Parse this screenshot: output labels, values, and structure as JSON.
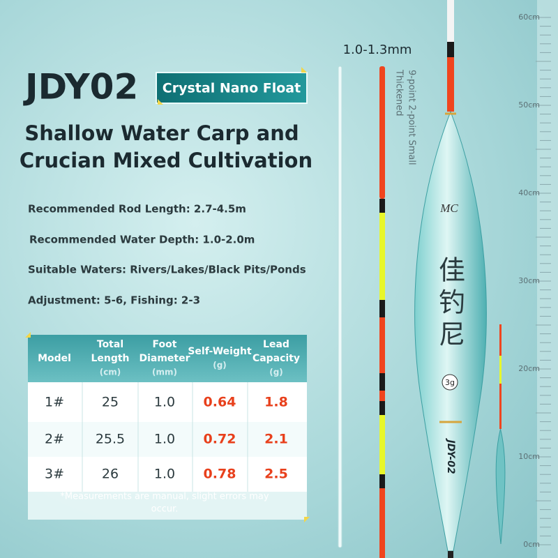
{
  "header": {
    "model": "JDY02",
    "badge": "Crystal Nano Float",
    "headline": [
      "Shallow Water Carp and",
      "Crucian Mixed Cultivation"
    ]
  },
  "specs": [
    "Recommended Rod Length: 2.7-4.5m",
    "Recommended Water Depth: 1.0-2.0m",
    "Suitable Waters: Rivers/Lakes/Black Pits/Ponds",
    "Adjustment: 5-6, Fishing: 2-3"
  ],
  "table": {
    "columns": [
      [
        "Model"
      ],
      [
        "Total",
        "Length",
        "(cm)"
      ],
      [
        "Foot",
        "Diameter",
        "(mm)"
      ],
      [
        "Self-Weight",
        "(g)"
      ],
      [
        "Lead",
        "Capacity",
        "(g)"
      ]
    ],
    "rows": [
      [
        "1#",
        "25",
        "1.0",
        "0.64",
        "1.8"
      ],
      [
        "2#",
        "25.5",
        "1.0",
        "0.72",
        "2.1"
      ],
      [
        "3#",
        "26",
        "1.0",
        "0.78",
        "2.5"
      ]
    ],
    "note": [
      "*Measurements are manual, slight errors may",
      "occur."
    ]
  },
  "product": {
    "stem_size": "1.0-1.3mm",
    "tip_note": [
      "9-point 2-point Small",
      "Thickened"
    ],
    "logo": "MC",
    "brand": [
      "佳",
      "钓",
      "尼"
    ],
    "weight_mark": "3g",
    "body_label": "JDY-02"
  },
  "ruler": [
    "60cm",
    "50cm",
    "40cm",
    "30cm",
    "20cm",
    "10cm",
    "0cm"
  ]
}
